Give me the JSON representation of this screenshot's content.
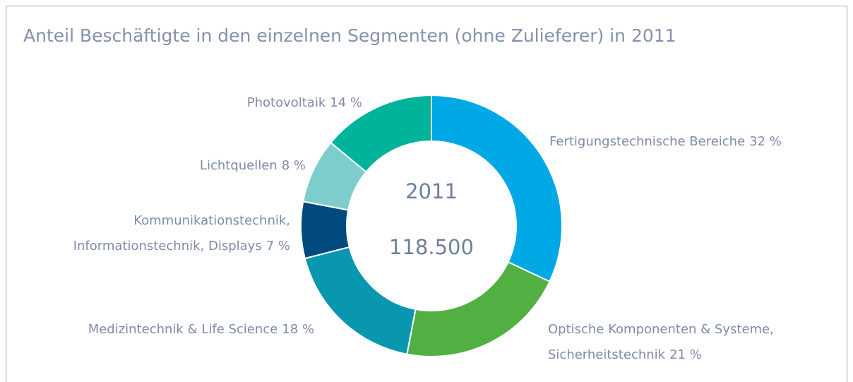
{
  "chart_data": {
    "type": "donut",
    "title": "Anteil Beschäftigte in den einzelnen Segmenten (ohne Zulieferer) in 2011",
    "center_title": "2011",
    "total": 118500,
    "total_label": "118.500",
    "categories": [
      [
        "Fertigungstechnische Bereiche"
      ],
      [
        "Optische Komponenten & Systeme,",
        "Sicherheitstechnik"
      ],
      [
        "Medizintechnik & Life Science"
      ],
      [
        "Kommunikationstechnik,",
        "Informationstechnik, Displays"
      ],
      [
        "Lichtquellen"
      ],
      [
        "Photovoltaik"
      ]
    ],
    "values": [
      32,
      21,
      18,
      7,
      8,
      14
    ],
    "value_labels": [
      "32 %",
      "21 %",
      "18 %",
      "7 %",
      "8 %",
      "14 %"
    ],
    "colors": [
      "#00a9e6",
      "#52b043",
      "#0997b0",
      "#004a7d",
      "#7dcdcd",
      "#00b39b"
    ]
  }
}
